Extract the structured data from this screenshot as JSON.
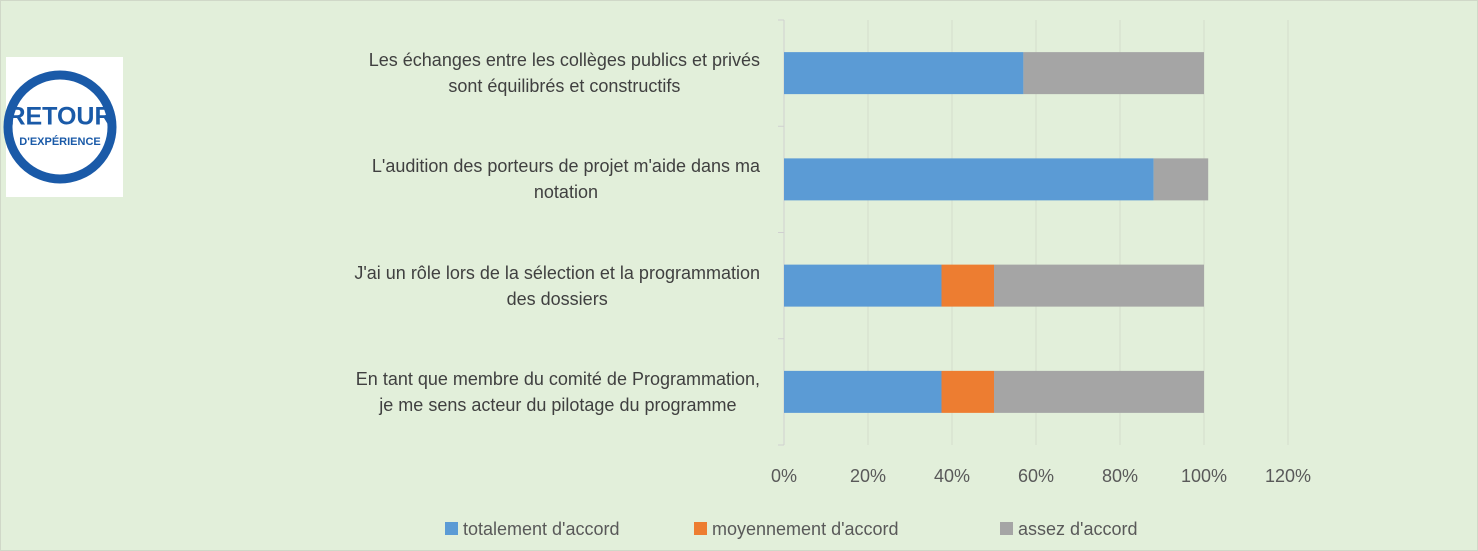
{
  "logo": {
    "lines": [
      "RETOUR",
      "D'EXPÉRIENCE"
    ]
  },
  "chart_data": {
    "type": "stacked_barh",
    "categories": [
      "Les échanges entre les collèges publics et privés\nsont  équilibrés et constructifs",
      "L'audition des porteurs de projet m'aide dans ma\nnotation",
      "J'ai un rôle lors de la sélection et la programmation\ndes dossiers",
      "En tant que membre du comité de Programmation,\nje me sens acteur du pilotage du programme"
    ],
    "series": [
      {
        "name": "totalement d'accord",
        "color": "#5b9bd5",
        "values": [
          57,
          88,
          37.5,
          37.5
        ]
      },
      {
        "name": "moyennement d'accord",
        "color": "#ed7d31",
        "values": [
          0,
          0,
          12.5,
          12.5
        ]
      },
      {
        "name": "assez d'accord",
        "color": "#a5a5a5",
        "values": [
          43,
          13,
          50,
          50
        ]
      }
    ],
    "xlim": [
      0,
      120
    ],
    "xticks": [
      {
        "value": 0,
        "label": "0%"
      },
      {
        "value": 20,
        "label": "20%"
      },
      {
        "value": 40,
        "label": "40%"
      },
      {
        "value": 60,
        "label": "60%"
      },
      {
        "value": 80,
        "label": "80%"
      },
      {
        "value": 100,
        "label": "100%"
      },
      {
        "value": 120,
        "label": "120%"
      }
    ],
    "grid": true,
    "legend": "bottom"
  }
}
